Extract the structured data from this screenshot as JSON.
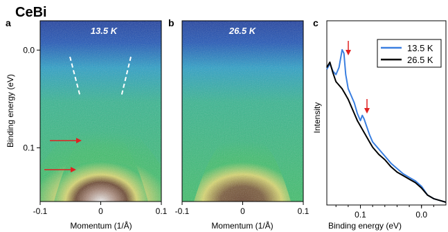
{
  "figure": {
    "main_title": "CeBi",
    "panel_letters": [
      "a",
      "b",
      "c"
    ]
  },
  "chart_data": [
    {
      "type": "heatmap",
      "panel": "a",
      "annotation": "13.5 K",
      "xlabel": "Momentum (1/Å)",
      "ylabel": "Binding energy (eV)",
      "x_ticks": [
        "-0.1",
        "0",
        "0.1"
      ],
      "y_ticks": [
        "0.0",
        "0.1"
      ],
      "xlim": [
        -0.1,
        0.1
      ],
      "ylim": [
        -0.03,
        0.155
      ],
      "colormap": [
        "#1e3fa0",
        "#2aa0c8",
        "#3fbf6a",
        "#d9d870",
        "#6b4630",
        "#f2f2f2"
      ],
      "dashed_lines_color": "#ffffff",
      "arrow_color": "#e02020",
      "arrows_binding_energy": [
        0.095,
        0.128
      ]
    },
    {
      "type": "heatmap",
      "panel": "b",
      "annotation": "26.5 K",
      "xlabel": "Momentum (1/Å)",
      "x_ticks": [
        "-0.1",
        "0",
        "0.1"
      ],
      "xlim": [
        -0.1,
        0.1
      ],
      "ylim": [
        -0.03,
        0.155
      ]
    },
    {
      "type": "line",
      "panel": "c",
      "xlabel": "Binding energy (eV)",
      "ylabel": "Intensity",
      "x_ticks": [
        "0.1",
        "0.0"
      ],
      "xlim": [
        0.155,
        -0.04
      ],
      "ylim": [
        0,
        1
      ],
      "legend_position": "top-right",
      "arrow_color": "#e02020",
      "arrows_binding_energy": [
        0.128,
        0.095
      ],
      "series": [
        {
          "name": "13.5 K",
          "color": "#3a7fe0",
          "x": [
            0.155,
            0.15,
            0.145,
            0.14,
            0.135,
            0.13,
            0.127,
            0.124,
            0.12,
            0.115,
            0.11,
            0.105,
            0.1,
            0.097,
            0.094,
            0.09,
            0.085,
            0.08,
            0.07,
            0.06,
            0.05,
            0.04,
            0.03,
            0.02,
            0.01,
            0.0,
            -0.01,
            -0.02,
            -0.03,
            -0.04
          ],
          "y": [
            0.75,
            0.78,
            0.74,
            0.72,
            0.76,
            0.86,
            0.84,
            0.72,
            0.64,
            0.6,
            0.56,
            0.5,
            0.46,
            0.49,
            0.47,
            0.43,
            0.38,
            0.34,
            0.3,
            0.26,
            0.22,
            0.19,
            0.16,
            0.14,
            0.12,
            0.09,
            0.04,
            0.02,
            0.01,
            0.0
          ]
        },
        {
          "name": "26.5 K",
          "color": "#000000",
          "x": [
            0.155,
            0.15,
            0.145,
            0.14,
            0.135,
            0.13,
            0.125,
            0.12,
            0.115,
            0.11,
            0.105,
            0.1,
            0.095,
            0.09,
            0.085,
            0.08,
            0.07,
            0.06,
            0.05,
            0.04,
            0.03,
            0.02,
            0.01,
            0.0,
            -0.01,
            -0.02,
            -0.03,
            -0.04
          ],
          "y": [
            0.76,
            0.79,
            0.73,
            0.68,
            0.66,
            0.64,
            0.61,
            0.58,
            0.54,
            0.5,
            0.46,
            0.43,
            0.4,
            0.37,
            0.34,
            0.31,
            0.27,
            0.24,
            0.2,
            0.17,
            0.15,
            0.13,
            0.11,
            0.08,
            0.04,
            0.02,
            0.01,
            0.0
          ]
        }
      ]
    }
  ]
}
